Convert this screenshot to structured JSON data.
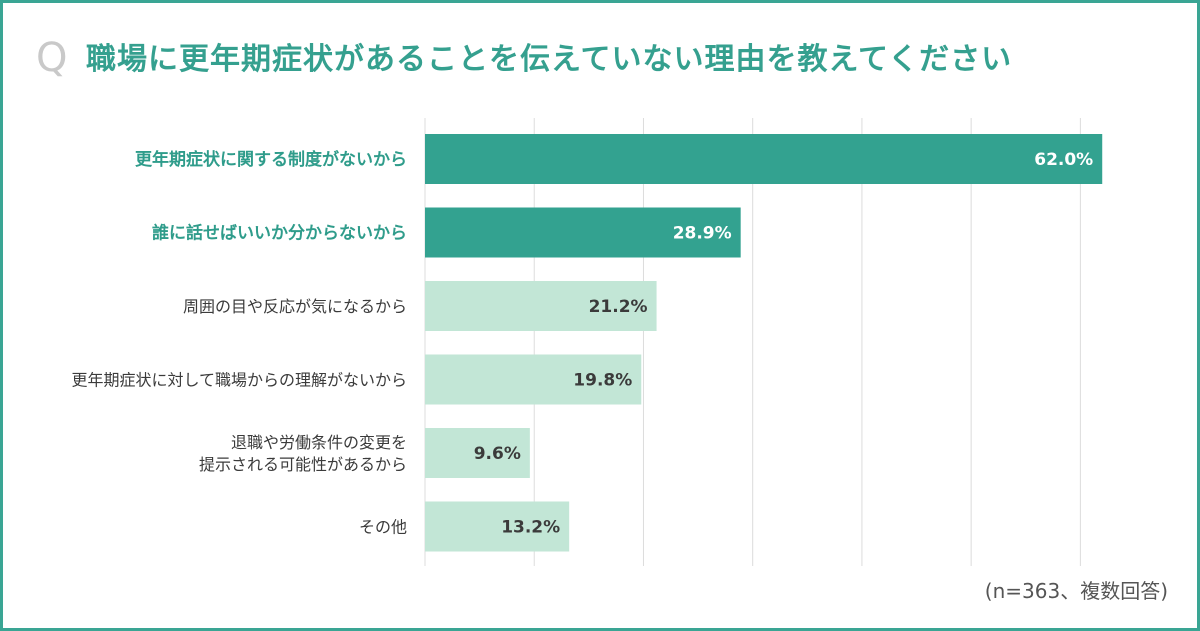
{
  "header": {
    "q_mark": "Q",
    "title": "職場に更年期症状があることを伝えていない理由を教えてください"
  },
  "footnote": "(n=363、複数回答)",
  "colors": {
    "frame": "#3aa594",
    "bar_highlight": "#33a290",
    "bar_normal": "#c2e6d6",
    "label_highlight": "#2f9c8b",
    "value_on_dark": "#ffffff",
    "value_on_light": "#3b3b3b",
    "grid": "#dcdcdc"
  },
  "chart_data": {
    "type": "bar",
    "orientation": "horizontal",
    "unit": "%",
    "xlim": [
      0,
      65
    ],
    "grid": true,
    "grid_step": 10,
    "categories": [
      [
        "更年期症状に関する制度がないから"
      ],
      [
        "誰に話せばいいか分からないから"
      ],
      [
        "周囲の目や反応が気になるから"
      ],
      [
        "更年期症状に対して職場からの理解がないから"
      ],
      [
        "退職や労働条件の変更を",
        "提示される可能性があるから"
      ],
      [
        "その他"
      ]
    ],
    "values": [
      62.0,
      28.9,
      21.2,
      19.8,
      9.6,
      13.2
    ],
    "value_labels": [
      "62.0%",
      "28.9%",
      "21.2%",
      "19.8%",
      "9.6%",
      "13.2%"
    ],
    "highlighted": [
      true,
      true,
      false,
      false,
      false,
      false
    ]
  }
}
